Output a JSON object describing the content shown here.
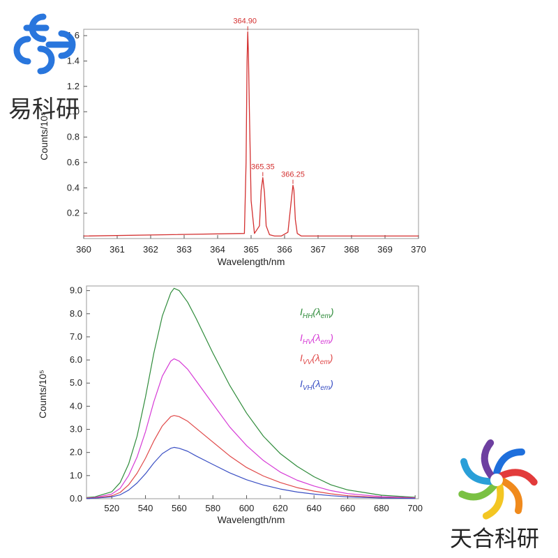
{
  "watermarks": {
    "top_left": "易科研",
    "bottom_right": "天合科研",
    "colors": [
      "#1e6fdc",
      "#e23b3b",
      "#f08a1c",
      "#f3c623",
      "#7ac143",
      "#2a9fd8",
      "#6d3fa0"
    ]
  },
  "chart_data": [
    {
      "type": "line",
      "xlim": [
        360,
        370
      ],
      "ylim": [
        0,
        1.65
      ],
      "x_ticks": [
        "360",
        "361",
        "362",
        "363",
        "364",
        "365",
        "366",
        "367",
        "368",
        "369",
        "370"
      ],
      "y_ticks": [
        "0.2",
        "0.4",
        "0.6",
        "0.8",
        "1.0",
        "1.2",
        "1.4",
        "1.6"
      ],
      "ylabel": "Counts/10⁵",
      "xlabel": "Wavelength/nm",
      "grid": false,
      "series": [
        {
          "color": "#d32f2f",
          "x": [
            360,
            364.8,
            364.85,
            364.88,
            364.9,
            364.92,
            364.95,
            365.0,
            365.1,
            365.25,
            365.3,
            365.35,
            365.4,
            365.45,
            365.55,
            365.7,
            365.9,
            366.1,
            366.2,
            366.25,
            366.28,
            366.32,
            366.38,
            366.5,
            370
          ],
          "y": [
            0.02,
            0.04,
            0.6,
            1.4,
            1.63,
            1.45,
            1.0,
            0.3,
            0.04,
            0.1,
            0.38,
            0.48,
            0.36,
            0.1,
            0.03,
            0.02,
            0.02,
            0.05,
            0.3,
            0.42,
            0.38,
            0.15,
            0.04,
            0.02,
            0.02
          ]
        }
      ],
      "annotations": [
        {
          "text": "364.90",
          "x": 364.9,
          "y": 1.63
        },
        {
          "text": "365.35",
          "x": 365.35,
          "y": 0.48
        },
        {
          "text": "366.25",
          "x": 366.25,
          "y": 0.42
        }
      ]
    },
    {
      "type": "line",
      "xlim": [
        505,
        702
      ],
      "ylim": [
        0,
        9.2
      ],
      "x_ticks": [
        "520",
        "540",
        "560",
        "580",
        "600",
        "620",
        "640",
        "660",
        "680",
        "700"
      ],
      "y_ticks": [
        "0.0",
        "1.0",
        "2.0",
        "3.0",
        "4.0",
        "5.0",
        "6.0",
        "7.0",
        "8.0",
        "9.0"
      ],
      "ylabel": "Counts/10⁵",
      "xlabel": "Wavelength/nm",
      "grid": false,
      "legend": "top-right",
      "x": [
        505,
        510,
        520,
        525,
        530,
        535,
        540,
        545,
        550,
        555,
        557,
        560,
        565,
        570,
        580,
        590,
        600,
        610,
        620,
        630,
        640,
        650,
        660,
        680,
        700
      ],
      "series": [
        {
          "legend_main": "I",
          "legend_sub": "HH",
          "legend_tail": "(λ",
          "legend_tail_sub": "em",
          "legend_close": ")",
          "color": "#2e8b3a",
          "values": [
            0.05,
            0.08,
            0.3,
            0.7,
            1.5,
            2.7,
            4.4,
            6.3,
            7.9,
            8.9,
            9.1,
            9.0,
            8.5,
            7.8,
            6.3,
            4.9,
            3.7,
            2.7,
            1.95,
            1.4,
            0.95,
            0.6,
            0.38,
            0.15,
            0.06
          ]
        },
        {
          "legend_main": "I",
          "legend_sub": "HV",
          "legend_tail": "(λ",
          "legend_tail_sub": "em",
          "legend_close": ")",
          "color": "#d63ad6",
          "values": [
            0.03,
            0.05,
            0.2,
            0.45,
            1.0,
            1.8,
            2.9,
            4.2,
            5.3,
            5.95,
            6.05,
            5.95,
            5.6,
            5.1,
            4.1,
            3.1,
            2.3,
            1.65,
            1.15,
            0.8,
            0.55,
            0.35,
            0.22,
            0.09,
            0.04
          ]
        },
        {
          "legend_main": "I",
          "legend_sub": "VV",
          "legend_tail": "(λ",
          "legend_tail_sub": "em",
          "legend_close": ")",
          "color": "#e04848",
          "values": [
            0.02,
            0.03,
            0.12,
            0.27,
            0.6,
            1.1,
            1.75,
            2.5,
            3.15,
            3.55,
            3.6,
            3.55,
            3.35,
            3.05,
            2.45,
            1.85,
            1.35,
            0.98,
            0.7,
            0.48,
            0.33,
            0.21,
            0.13,
            0.05,
            0.02
          ]
        },
        {
          "legend_main": "I",
          "legend_sub": "VH",
          "legend_tail": "(λ",
          "legend_tail_sub": "em",
          "legend_close": ")",
          "color": "#3a4fc4",
          "values": [
            0.01,
            0.02,
            0.08,
            0.17,
            0.37,
            0.68,
            1.08,
            1.55,
            1.95,
            2.18,
            2.22,
            2.18,
            2.05,
            1.85,
            1.48,
            1.12,
            0.82,
            0.59,
            0.42,
            0.29,
            0.2,
            0.13,
            0.08,
            0.03,
            0.01
          ]
        }
      ]
    }
  ]
}
